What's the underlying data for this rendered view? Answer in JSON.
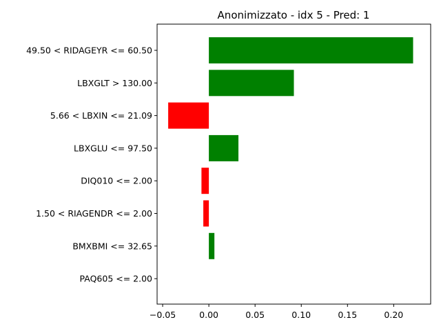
{
  "chart_data": {
    "type": "bar",
    "orientation": "horizontal",
    "title": "Anonimizzato - idx 5 - Pred: 1",
    "xlabel": "",
    "ylabel": "",
    "categories": [
      "49.50 < RIDAGEYR <= 60.50",
      "LBXGLT > 130.00",
      "5.66 < LBXIN <= 21.09",
      "LBXGLU <= 97.50",
      "DIQ010 <= 2.00",
      "1.50 < RIAGENDR <= 2.00",
      "BMXBMI <= 32.65",
      "PAQ605 <= 2.00"
    ],
    "values": [
      0.221,
      0.092,
      -0.044,
      0.032,
      -0.008,
      -0.006,
      0.006,
      0.0
    ],
    "xlim": [
      -0.056,
      0.24
    ],
    "xticks": [
      -0.05,
      0.0,
      0.05,
      0.1,
      0.15,
      0.2
    ],
    "xtick_labels": [
      "−0.05",
      "0.00",
      "0.05",
      "0.10",
      "0.15",
      "0.20"
    ],
    "grid": false,
    "colors": {
      "positive": "#008000",
      "negative": "#ff0000"
    }
  }
}
